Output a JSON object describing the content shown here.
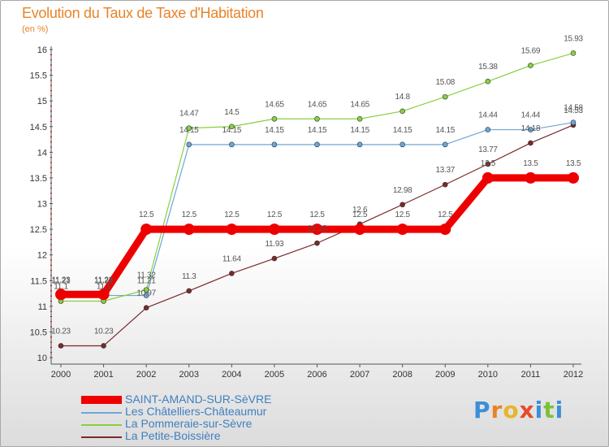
{
  "header": {
    "title": "Evolution du Taux de Taxe d'Habitation",
    "subtitle": "(en %)"
  },
  "brand": {
    "letters": [
      "P",
      "r",
      "o",
      "x",
      "i",
      "t",
      "i"
    ],
    "colors": [
      "#3a8fd8",
      "#e8832a",
      "#e8b42a",
      "#e84a2a",
      "#3a8fd8",
      "#7cc13a",
      "#3a8fd8"
    ]
  },
  "colors": {
    "title": "#e8832a",
    "legend_text": "#3f7fc0",
    "axis": "#555555",
    "tick": "#cc0000"
  },
  "chart_data": {
    "type": "line",
    "title": "Evolution du Taux de Taxe d'Habitation",
    "subtitle": "(en %)",
    "xlabel": "",
    "ylabel": "",
    "ylim": [
      10,
      16
    ],
    "grid": false,
    "legend_position": "bottom-left",
    "x": [
      "2000",
      "2001",
      "2002",
      "2003",
      "2004",
      "2005",
      "2006",
      "2007",
      "2008",
      "2009",
      "2010",
      "2011",
      "2012"
    ],
    "y_ticks": [
      "10",
      "10.5",
      "11",
      "11.5",
      "12",
      "12.5",
      "13",
      "13.5",
      "14",
      "14.5",
      "15",
      "15.5",
      "16"
    ],
    "series": [
      {
        "name": "SAINT-AMAND-SUR-SèVRE",
        "color": "#ee0000",
        "emphasis": "thick",
        "values": [
          11.23,
          11.23,
          12.5,
          12.5,
          12.5,
          12.5,
          12.5,
          12.5,
          12.5,
          12.5,
          13.5,
          13.5,
          13.5
        ],
        "labels": [
          "11.23",
          "11.23",
          "12.5",
          "12.5",
          "12.5",
          "12.5",
          "12.5",
          "12.5",
          "12.5",
          "12.5",
          "13.5",
          "13.5",
          "13.5"
        ]
      },
      {
        "name": "Les Châtelliers-Châteaumur",
        "color": "#6ca6d8",
        "emphasis": "normal",
        "values": [
          11.21,
          11.21,
          11.21,
          14.15,
          14.15,
          14.15,
          14.15,
          14.15,
          14.15,
          14.15,
          14.44,
          14.44,
          14.58
        ],
        "labels": [
          "11.21",
          "11.21",
          "11.21",
          "14.15",
          "14.15",
          "14.15",
          "14.15",
          "14.15",
          "14.15",
          "14.15",
          "14.44",
          "14.44",
          "14.58"
        ]
      },
      {
        "name": "La Pommeraie-sur-Sèvre",
        "color": "#88d040",
        "emphasis": "normal",
        "values": [
          11.1,
          11.1,
          11.32,
          14.47,
          14.5,
          14.65,
          14.65,
          14.65,
          14.8,
          15.08,
          15.38,
          15.69,
          15.93
        ],
        "labels": [
          "11.1",
          "11.1",
          "11.32",
          "14.47",
          "14.5",
          "14.65",
          "14.65",
          "14.65",
          "14.8",
          "15.08",
          "15.38",
          "15.69",
          "15.93"
        ]
      },
      {
        "name": "La Petite-Boissière",
        "color": "#7a2a2a",
        "emphasis": "normal",
        "values": [
          10.23,
          10.23,
          10.97,
          11.3,
          11.64,
          11.93,
          12.23,
          12.6,
          12.98,
          13.37,
          13.77,
          14.18,
          14.53
        ],
        "labels": [
          "10.23",
          "10.23",
          "10.97",
          "11.3",
          "11.64",
          "11.93",
          "12.23",
          "12.6",
          "12.98",
          "13.37",
          "13.77",
          "14.18",
          "14.53"
        ]
      }
    ]
  }
}
